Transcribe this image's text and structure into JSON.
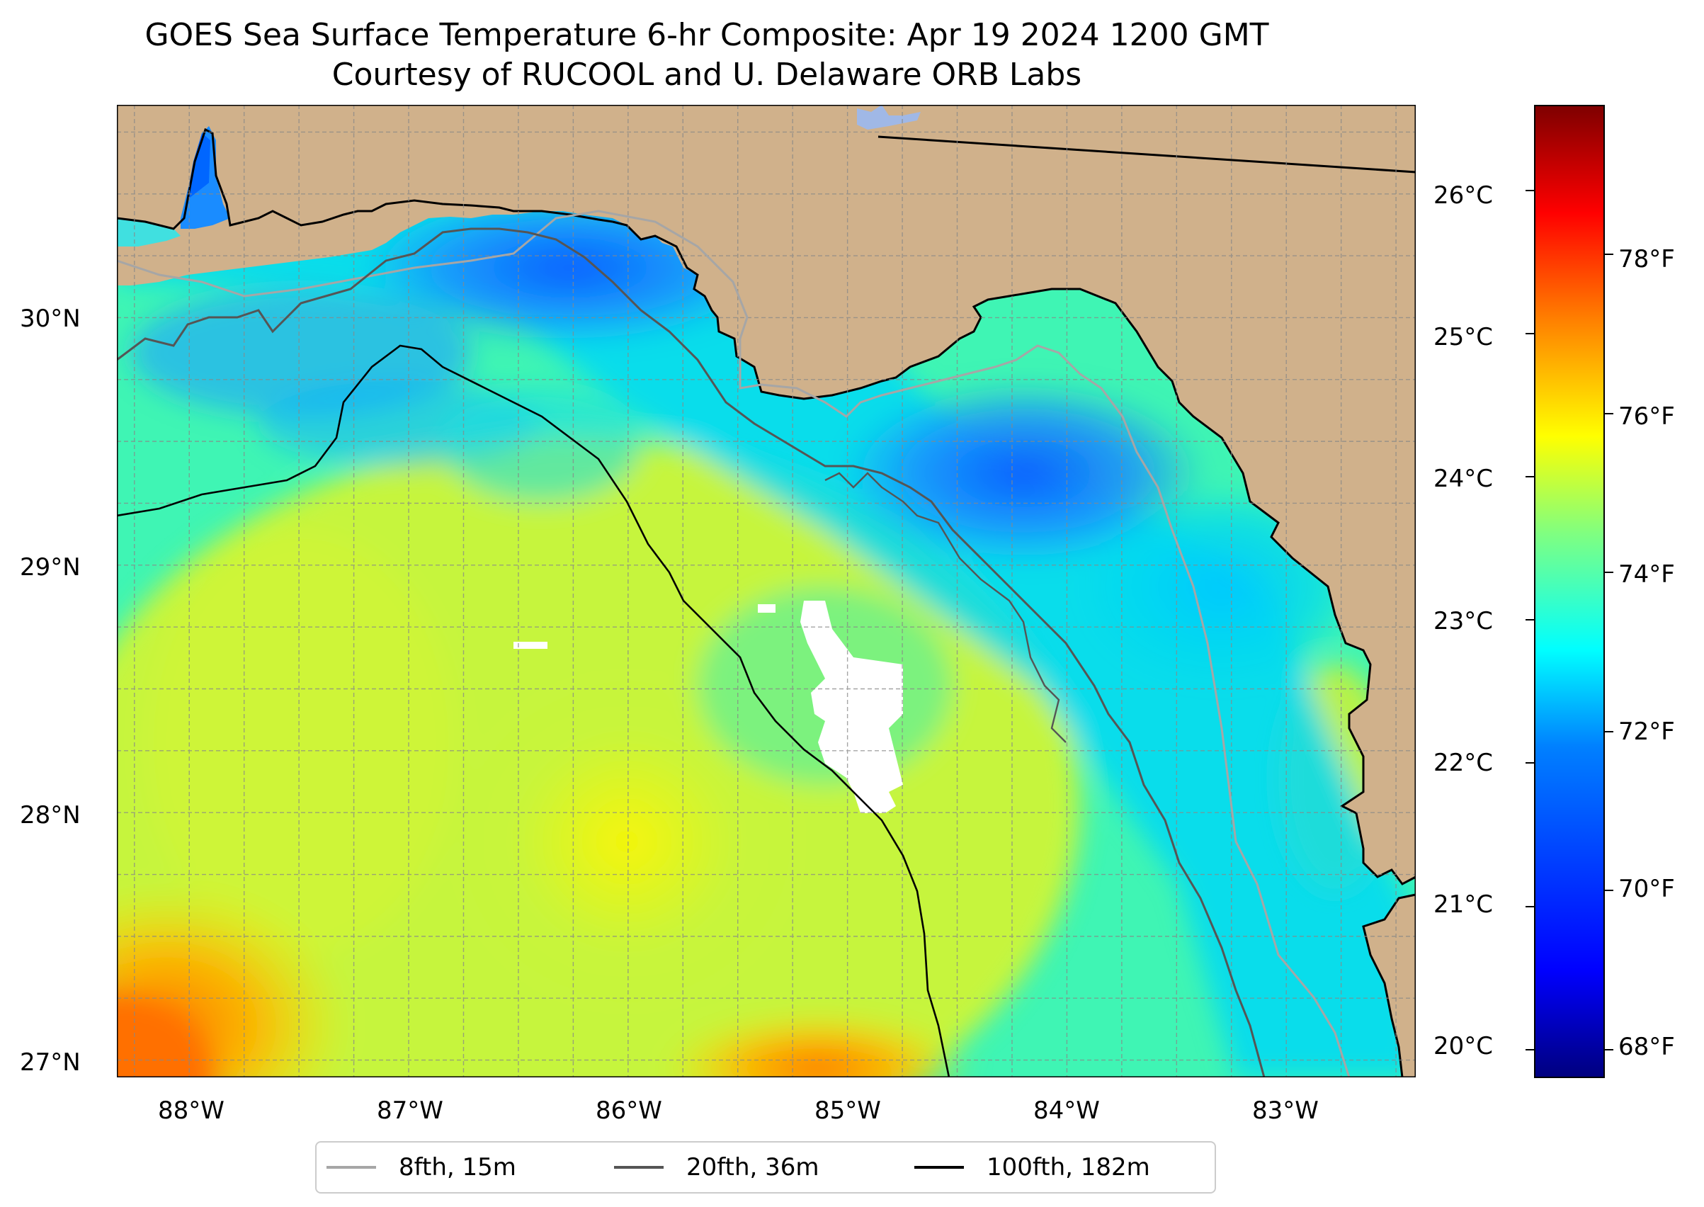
{
  "title": "GOES Sea Surface Temperature 6-hr Composite: Apr 19 2024 1200 GMT",
  "subtitle": "Courtesy of RUCOOL and U. Delaware ORB Labs",
  "map": {
    "extent": {
      "lon_min": -88.33,
      "lon_max": -82.41,
      "lat_min": 26.93,
      "lat_max": 30.86
    },
    "lat_ticks": [
      {
        "value": 30,
        "label": "30°N"
      },
      {
        "value": 29,
        "label": "29°N"
      },
      {
        "value": 28,
        "label": "28°N"
      },
      {
        "value": 27,
        "label": "27°N"
      }
    ],
    "lon_ticks": [
      {
        "value": -88,
        "label": "88°W"
      },
      {
        "value": -87,
        "label": "87°W"
      },
      {
        "value": -86,
        "label": "86°W"
      },
      {
        "value": -85,
        "label": "85°W"
      },
      {
        "value": -84,
        "label": "84°W"
      },
      {
        "value": -83,
        "label": "83°W"
      }
    ],
    "land_color": "#d0b18b",
    "gridlines": "dashed"
  },
  "colorbar": {
    "colormap": "jet",
    "celsius_ticks": [
      "26°C",
      "25°C",
      "24°C",
      "23°C",
      "22°C",
      "21°C",
      "20°C"
    ],
    "celsius_values": [
      26,
      25,
      24,
      23,
      22,
      21,
      20
    ],
    "fahrenheit_ticks": [
      "78°F",
      "76°F",
      "74°F",
      "72°F",
      "70°F",
      "68°F"
    ],
    "fahrenheit_values": [
      78,
      76,
      74,
      72,
      70,
      68
    ],
    "range_celsius": [
      19.8,
      26.6
    ]
  },
  "legend": [
    {
      "label": "8fth, 15m",
      "color": "#a6a6a6"
    },
    {
      "label": "20fth, 36m",
      "color": "#555555"
    },
    {
      "label": "100fth, 182m",
      "color": "#000000"
    }
  ]
}
